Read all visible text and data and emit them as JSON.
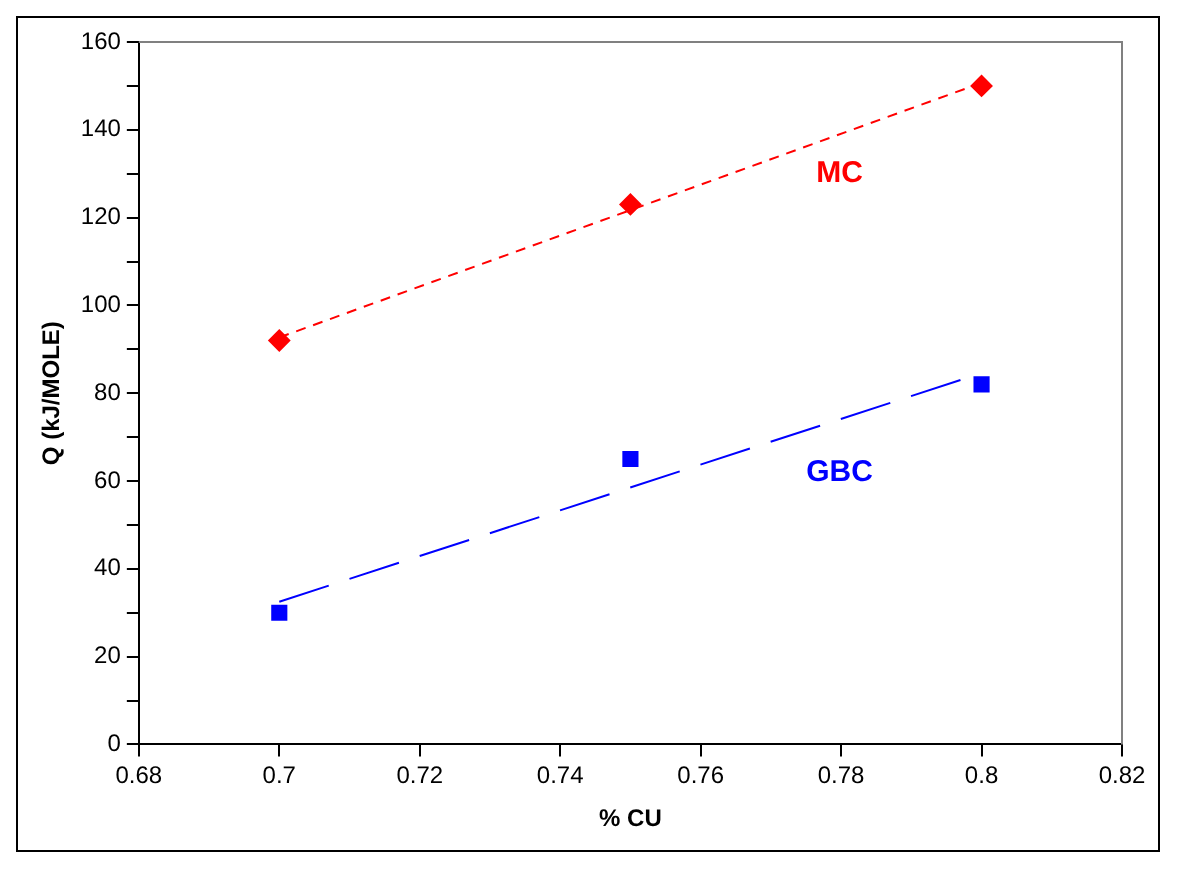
{
  "chart_data": {
    "type": "scatter",
    "xlabel": "% CU",
    "ylabel": "Q (kJ/MOLE)",
    "xlim": [
      0.68,
      0.82
    ],
    "xticks": [
      {
        "value": 0.68,
        "label": "0.68"
      },
      {
        "value": 0.7,
        "label": "0.7"
      },
      {
        "value": 0.72,
        "label": "0.72"
      },
      {
        "value": 0.74,
        "label": "0.74"
      },
      {
        "value": 0.76,
        "label": "0.76"
      },
      {
        "value": 0.78,
        "label": "0.78"
      },
      {
        "value": 0.8,
        "label": "0.8"
      },
      {
        "value": 0.82,
        "label": "0.82"
      }
    ],
    "ylim": [
      0,
      160
    ],
    "yticks": [
      0,
      {
        "value": 10,
        "label": null
      },
      20,
      {
        "value": 30,
        "label": null
      },
      40,
      {
        "value": 50,
        "label": null
      },
      60,
      {
        "value": 70,
        "label": null
      },
      80,
      {
        "value": 90,
        "label": null
      },
      100,
      {
        "value": 110,
        "label": null
      },
      120,
      {
        "value": 130,
        "label": null
      },
      140,
      {
        "value": 150,
        "label": null
      },
      160
    ],
    "grid": false,
    "legend": false,
    "series": [
      {
        "name": "MC",
        "marker": "diamond",
        "color": "#ff0000",
        "x": [
          0.7,
          0.75,
          0.8
        ],
        "values": [
          92,
          123,
          150
        ]
      },
      {
        "name": "GBC",
        "marker": "square",
        "color": "#0000ff",
        "x": [
          0.7,
          0.75,
          0.8
        ],
        "values": [
          30,
          65,
          82
        ]
      },
      {
        "type": "line",
        "line_style": "dashed",
        "marker": "none",
        "color": "#ff0000",
        "x": [
          0.7,
          0.8
        ],
        "values": [
          92.7,
          150.7
        ]
      },
      {
        "type": "line",
        "line_style": "dashed",
        "marker": "none",
        "color": "#0000ff",
        "x": [
          0.7,
          0.797
        ],
        "values": [
          32.5,
          83
        ]
      }
    ]
  }
}
